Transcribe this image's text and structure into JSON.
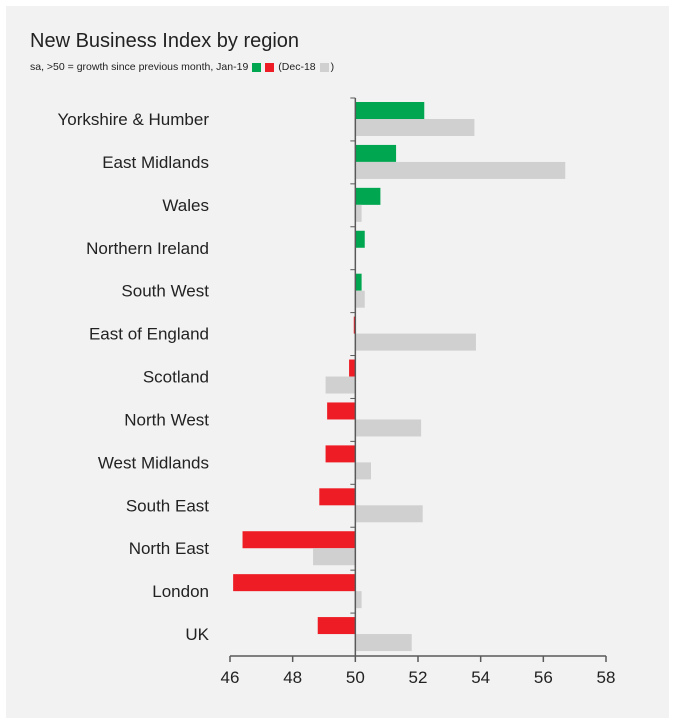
{
  "chart_data": {
    "type": "bar",
    "orientation": "horizontal",
    "title": "New Business Index by region",
    "subtitle_text": "sa, >50 = growth since previous month, Jan-19",
    "subtitle_prev_open": "(Dec-18",
    "subtitle_prev_close": ")",
    "categories": [
      "Yorkshire & Humber",
      "East Midlands",
      "Wales",
      "Northern Ireland",
      "South West",
      "East of England",
      "Scotland",
      "North West",
      "West Midlands",
      "South East",
      "North East",
      "London",
      "UK"
    ],
    "series": [
      {
        "name": "Jan-19",
        "values": [
          52.2,
          51.3,
          50.8,
          50.3,
          50.2,
          49.95,
          49.8,
          49.1,
          49.05,
          48.85,
          46.4,
          46.1,
          48.8
        ]
      },
      {
        "name": "Dec-18",
        "values": [
          53.8,
          56.7,
          50.2,
          null,
          50.3,
          53.85,
          49.05,
          52.1,
          50.5,
          52.15,
          48.65,
          50.2,
          51.8
        ]
      }
    ],
    "baseline": 50,
    "xlim": [
      46,
      58
    ],
    "xticks": [
      "46",
      "48",
      "50",
      "52",
      "54",
      "56",
      "58"
    ],
    "colors": {
      "growth": "#00a650",
      "decline": "#ee1c25",
      "previous": "#d0d0d0",
      "axis": "#595959"
    },
    "grid": false
  }
}
